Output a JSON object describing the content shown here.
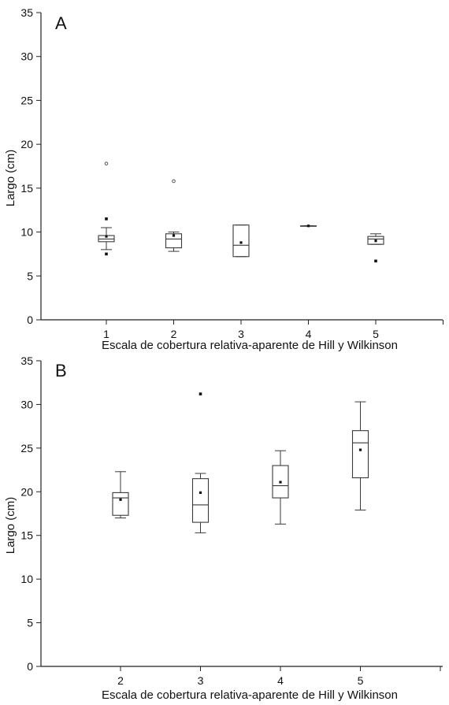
{
  "chart_data": [
    {
      "type": "box",
      "panel_label": "A",
      "xlabel": "Escala de cobertura relativa-aparente de Hill y Wilkinson",
      "ylabel": "Largo (cm)",
      "ylim": [
        0,
        35
      ],
      "yticks": [
        "0",
        "5",
        "10",
        "15",
        "20",
        "25",
        "30",
        "35"
      ],
      "categories": [
        "1",
        "2",
        "3",
        "4",
        "5"
      ],
      "boxes": [
        {
          "category": "1",
          "whisker_low": 8.0,
          "q1": 8.9,
          "median": 9.2,
          "q3": 9.6,
          "whisker_high": 10.5,
          "mean": 9.5,
          "outliers": [
            17.8
          ],
          "extremes": [
            11.5,
            7.5
          ]
        },
        {
          "category": "2",
          "whisker_low": 7.8,
          "q1": 8.2,
          "median": 9.2,
          "q3": 9.8,
          "whisker_high": 10.0,
          "mean": 9.6,
          "outliers": [
            15.8
          ],
          "extremes": []
        },
        {
          "category": "3",
          "whisker_low": 7.2,
          "q1": 7.2,
          "median": 8.5,
          "q3": 10.8,
          "whisker_high": 10.8,
          "mean": 8.8,
          "outliers": [],
          "extremes": []
        },
        {
          "category": "4",
          "whisker_low": 10.7,
          "q1": 10.7,
          "median": 10.7,
          "q3": 10.7,
          "whisker_high": 10.7,
          "mean": 10.7,
          "outliers": [],
          "extremes": []
        },
        {
          "category": "5",
          "whisker_low": 8.6,
          "q1": 8.6,
          "median": 9.2,
          "q3": 9.5,
          "whisker_high": 9.8,
          "mean": 9.0,
          "outliers": [],
          "extremes": [
            6.7
          ]
        }
      ]
    },
    {
      "type": "box",
      "panel_label": "B",
      "xlabel": "Escala de cobertura relativa-aparente de Hill y Wilkinson",
      "ylabel": "Largo (cm)",
      "ylim": [
        0,
        35
      ],
      "yticks": [
        "0",
        "5",
        "10",
        "15",
        "20",
        "25",
        "30",
        "35"
      ],
      "categories": [
        "2",
        "3",
        "4",
        "5"
      ],
      "boxes": [
        {
          "category": "2",
          "whisker_low": 17.0,
          "q1": 17.3,
          "median": 19.3,
          "q3": 19.9,
          "whisker_high": 22.3,
          "mean": 19.1,
          "outliers": [],
          "extremes": []
        },
        {
          "category": "3",
          "whisker_low": 15.3,
          "q1": 16.5,
          "median": 18.5,
          "q3": 21.5,
          "whisker_high": 22.1,
          "mean": 19.9,
          "outliers": [],
          "extremes": [
            31.2
          ]
        },
        {
          "category": "4",
          "whisker_low": 16.3,
          "q1": 19.3,
          "median": 20.7,
          "q3": 23.0,
          "whisker_high": 24.7,
          "mean": 21.1,
          "outliers": [],
          "extremes": []
        },
        {
          "category": "5",
          "whisker_low": 17.9,
          "q1": 21.6,
          "median": 25.6,
          "q3": 27.0,
          "whisker_high": 30.3,
          "mean": 24.8,
          "outliers": [],
          "extremes": []
        }
      ]
    }
  ]
}
